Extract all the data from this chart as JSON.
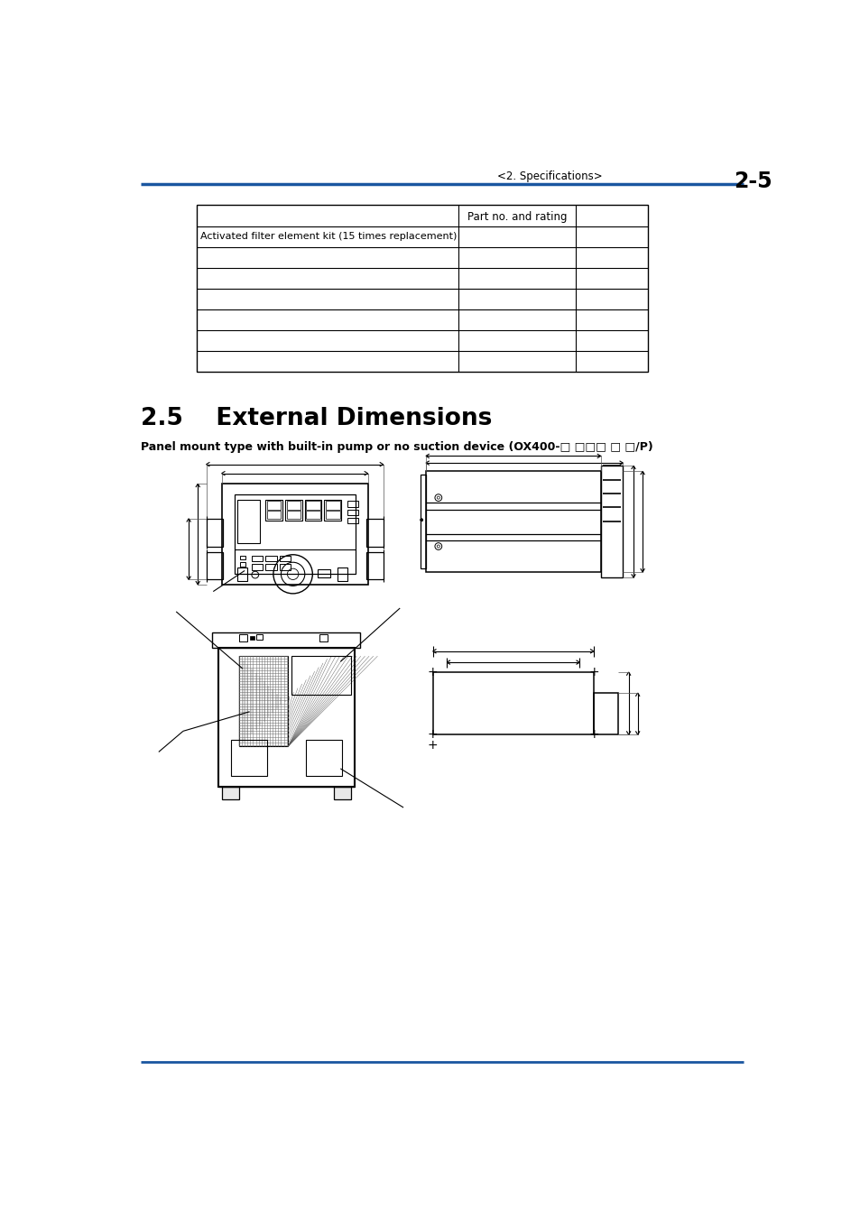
{
  "page_header_left": "<2. Specifications>",
  "page_header_right": "2-5",
  "header_line_color": "#1a56a0",
  "section_title": "2.5    External Dimensions",
  "subtitle": "Panel mount type with built-in pump or no suction device (OX400-□ □□□ □ □/P)",
  "table_rows": 8,
  "table_header_text": "Part no. and rating",
  "table_row1_col0": "Activated filter element kit (15 times replacement)",
  "footer_line_color": "#1a56a0",
  "bg_color": "#ffffff",
  "text_color": "#000000"
}
